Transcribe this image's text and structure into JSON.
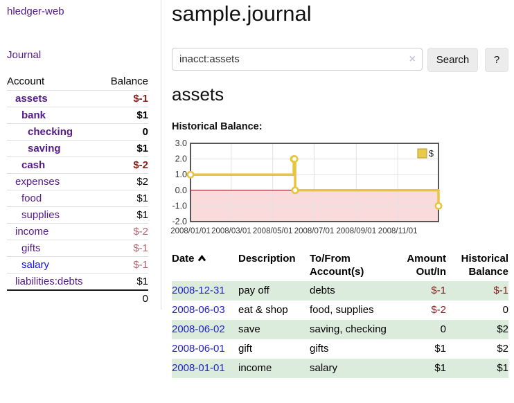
{
  "app": {
    "brand": "hledger-web",
    "nav_journal": "Journal"
  },
  "colors": {
    "link_purple": "#551a8b",
    "link_blue": "#1414dd",
    "date_link_blue": "#2222cc",
    "negative_strong": "#8b1a1a",
    "negative_soft": "#b4636e",
    "row_shade_green": "#dcecdc",
    "chart_line_gold": "#e7c53f",
    "chart_negative_fill": "#fadbdb",
    "chart_zero_line": "#8b0000",
    "chart_border": "#565656",
    "chart_grid": "#e2e2e2",
    "legend_swatch_fill": "#e9c94a",
    "legend_swatch_border": "#bb9c2c"
  },
  "sidebar": {
    "headers": {
      "account": "Account",
      "balance": "Balance"
    },
    "accounts": [
      {
        "label": "assets",
        "depth": 0,
        "bold": true,
        "link_color": "purple",
        "balance": "$-1",
        "balance_style": "neg"
      },
      {
        "label": "bank",
        "depth": 1,
        "bold": true,
        "link_color": "purple",
        "balance": "$1",
        "balance_style": ""
      },
      {
        "label": "checking",
        "depth": 2,
        "bold": true,
        "link_color": "purple",
        "balance": "0",
        "balance_style": ""
      },
      {
        "label": "saving",
        "depth": 2,
        "bold": true,
        "link_color": "purple",
        "balance": "$1",
        "balance_style": ""
      },
      {
        "label": "cash",
        "depth": 1,
        "bold": true,
        "link_color": "purple",
        "balance": "$-2",
        "balance_style": "neg"
      },
      {
        "label": "expenses",
        "depth": 0,
        "bold": false,
        "link_color": "purple",
        "balance": "$2",
        "balance_style": ""
      },
      {
        "label": "food",
        "depth": 1,
        "bold": false,
        "link_color": "purple",
        "balance": "$1",
        "balance_style": ""
      },
      {
        "label": "supplies",
        "depth": 1,
        "bold": false,
        "link_color": "purple",
        "balance": "$1",
        "balance_style": ""
      },
      {
        "label": "income",
        "depth": 0,
        "bold": false,
        "link_color": "purple",
        "balance": "$-2",
        "balance_style": "soft"
      },
      {
        "label": "gifts",
        "depth": 1,
        "bold": false,
        "link_color": "purple",
        "balance": "$-1",
        "balance_style": "soft"
      },
      {
        "label": "salary",
        "depth": 1,
        "bold": false,
        "link_color": "blue",
        "balance": "$-1",
        "balance_style": "soft"
      },
      {
        "label": "liabilities:debts",
        "depth": 0,
        "bold": false,
        "link_color": "purple",
        "balance": "$1",
        "balance_style": ""
      }
    ],
    "total": "0"
  },
  "main": {
    "title": "sample.journal",
    "search": {
      "value": "inacct:assets",
      "clear_icon": "×",
      "search_button": "Search",
      "help_button": "?"
    },
    "account_heading": "assets",
    "chart_label": "Historical Balance:"
  },
  "chart_data": {
    "type": "line",
    "title": "Historical Balance",
    "line_style": "step-after",
    "series": [
      {
        "name": "$",
        "points": [
          {
            "date": "2008-01-01",
            "day": 1,
            "value": 1
          },
          {
            "date": "2008-06-01",
            "day": 153,
            "value": 2
          },
          {
            "date": "2008-06-02",
            "day": 154,
            "value": 2
          },
          {
            "date": "2008-06-03",
            "day": 155,
            "value": 0
          },
          {
            "date": "2008-12-31",
            "day": 366,
            "value": -1
          }
        ]
      }
    ],
    "x_range_days": [
      1,
      366
    ],
    "x_ticks": [
      {
        "day": 1,
        "label": "2008/01/01"
      },
      {
        "day": 61,
        "label": "2008/03/01"
      },
      {
        "day": 122,
        "label": "2008/05/01"
      },
      {
        "day": 183,
        "label": "2008/07/01"
      },
      {
        "day": 245,
        "label": "2008/09/01"
      },
      {
        "day": 306,
        "label": "2008/11/01"
      }
    ],
    "ylim": [
      -2,
      3
    ],
    "y_ticks": [
      {
        "value": 3,
        "label": "3.0"
      },
      {
        "value": 2,
        "label": "2.0"
      },
      {
        "value": 1,
        "label": "1.0"
      },
      {
        "value": 0,
        "label": "0.0"
      },
      {
        "value": -1,
        "label": "-1.0"
      },
      {
        "value": -2,
        "label": "-2.0"
      }
    ],
    "grid": true,
    "negative_region_shaded": true,
    "legend": {
      "label": "$",
      "position": "top-right"
    }
  },
  "register": {
    "headers": [
      {
        "label": "Date",
        "sorted": "asc"
      },
      {
        "label": "Description"
      },
      {
        "label": "To/From Account(s)"
      },
      {
        "label": "Amount Out/In"
      },
      {
        "label": "Historical Balance"
      }
    ],
    "rows": [
      {
        "date": "2008-12-31",
        "description": "pay off",
        "accounts": "debts",
        "amount": "$-1",
        "amount_style": "neg",
        "balance": "$-1",
        "balance_style": "neg",
        "shaded": true
      },
      {
        "date": "2008-06-03",
        "description": "eat & shop",
        "accounts": "food, supplies",
        "amount": "$-2",
        "amount_style": "neg",
        "balance": "0",
        "balance_style": "",
        "shaded": false
      },
      {
        "date": "2008-06-02",
        "description": "save",
        "accounts": "saving, checking",
        "amount": "0",
        "amount_style": "",
        "balance": "$2",
        "balance_style": "",
        "shaded": true
      },
      {
        "date": "2008-06-01",
        "description": "gift",
        "accounts": "gifts",
        "amount": "$1",
        "amount_style": "",
        "balance": "$2",
        "balance_style": "",
        "shaded": false
      },
      {
        "date": "2008-01-01",
        "description": "income",
        "accounts": "salary",
        "amount": "$1",
        "amount_style": "",
        "balance": "$1",
        "balance_style": "",
        "shaded": true
      }
    ]
  }
}
